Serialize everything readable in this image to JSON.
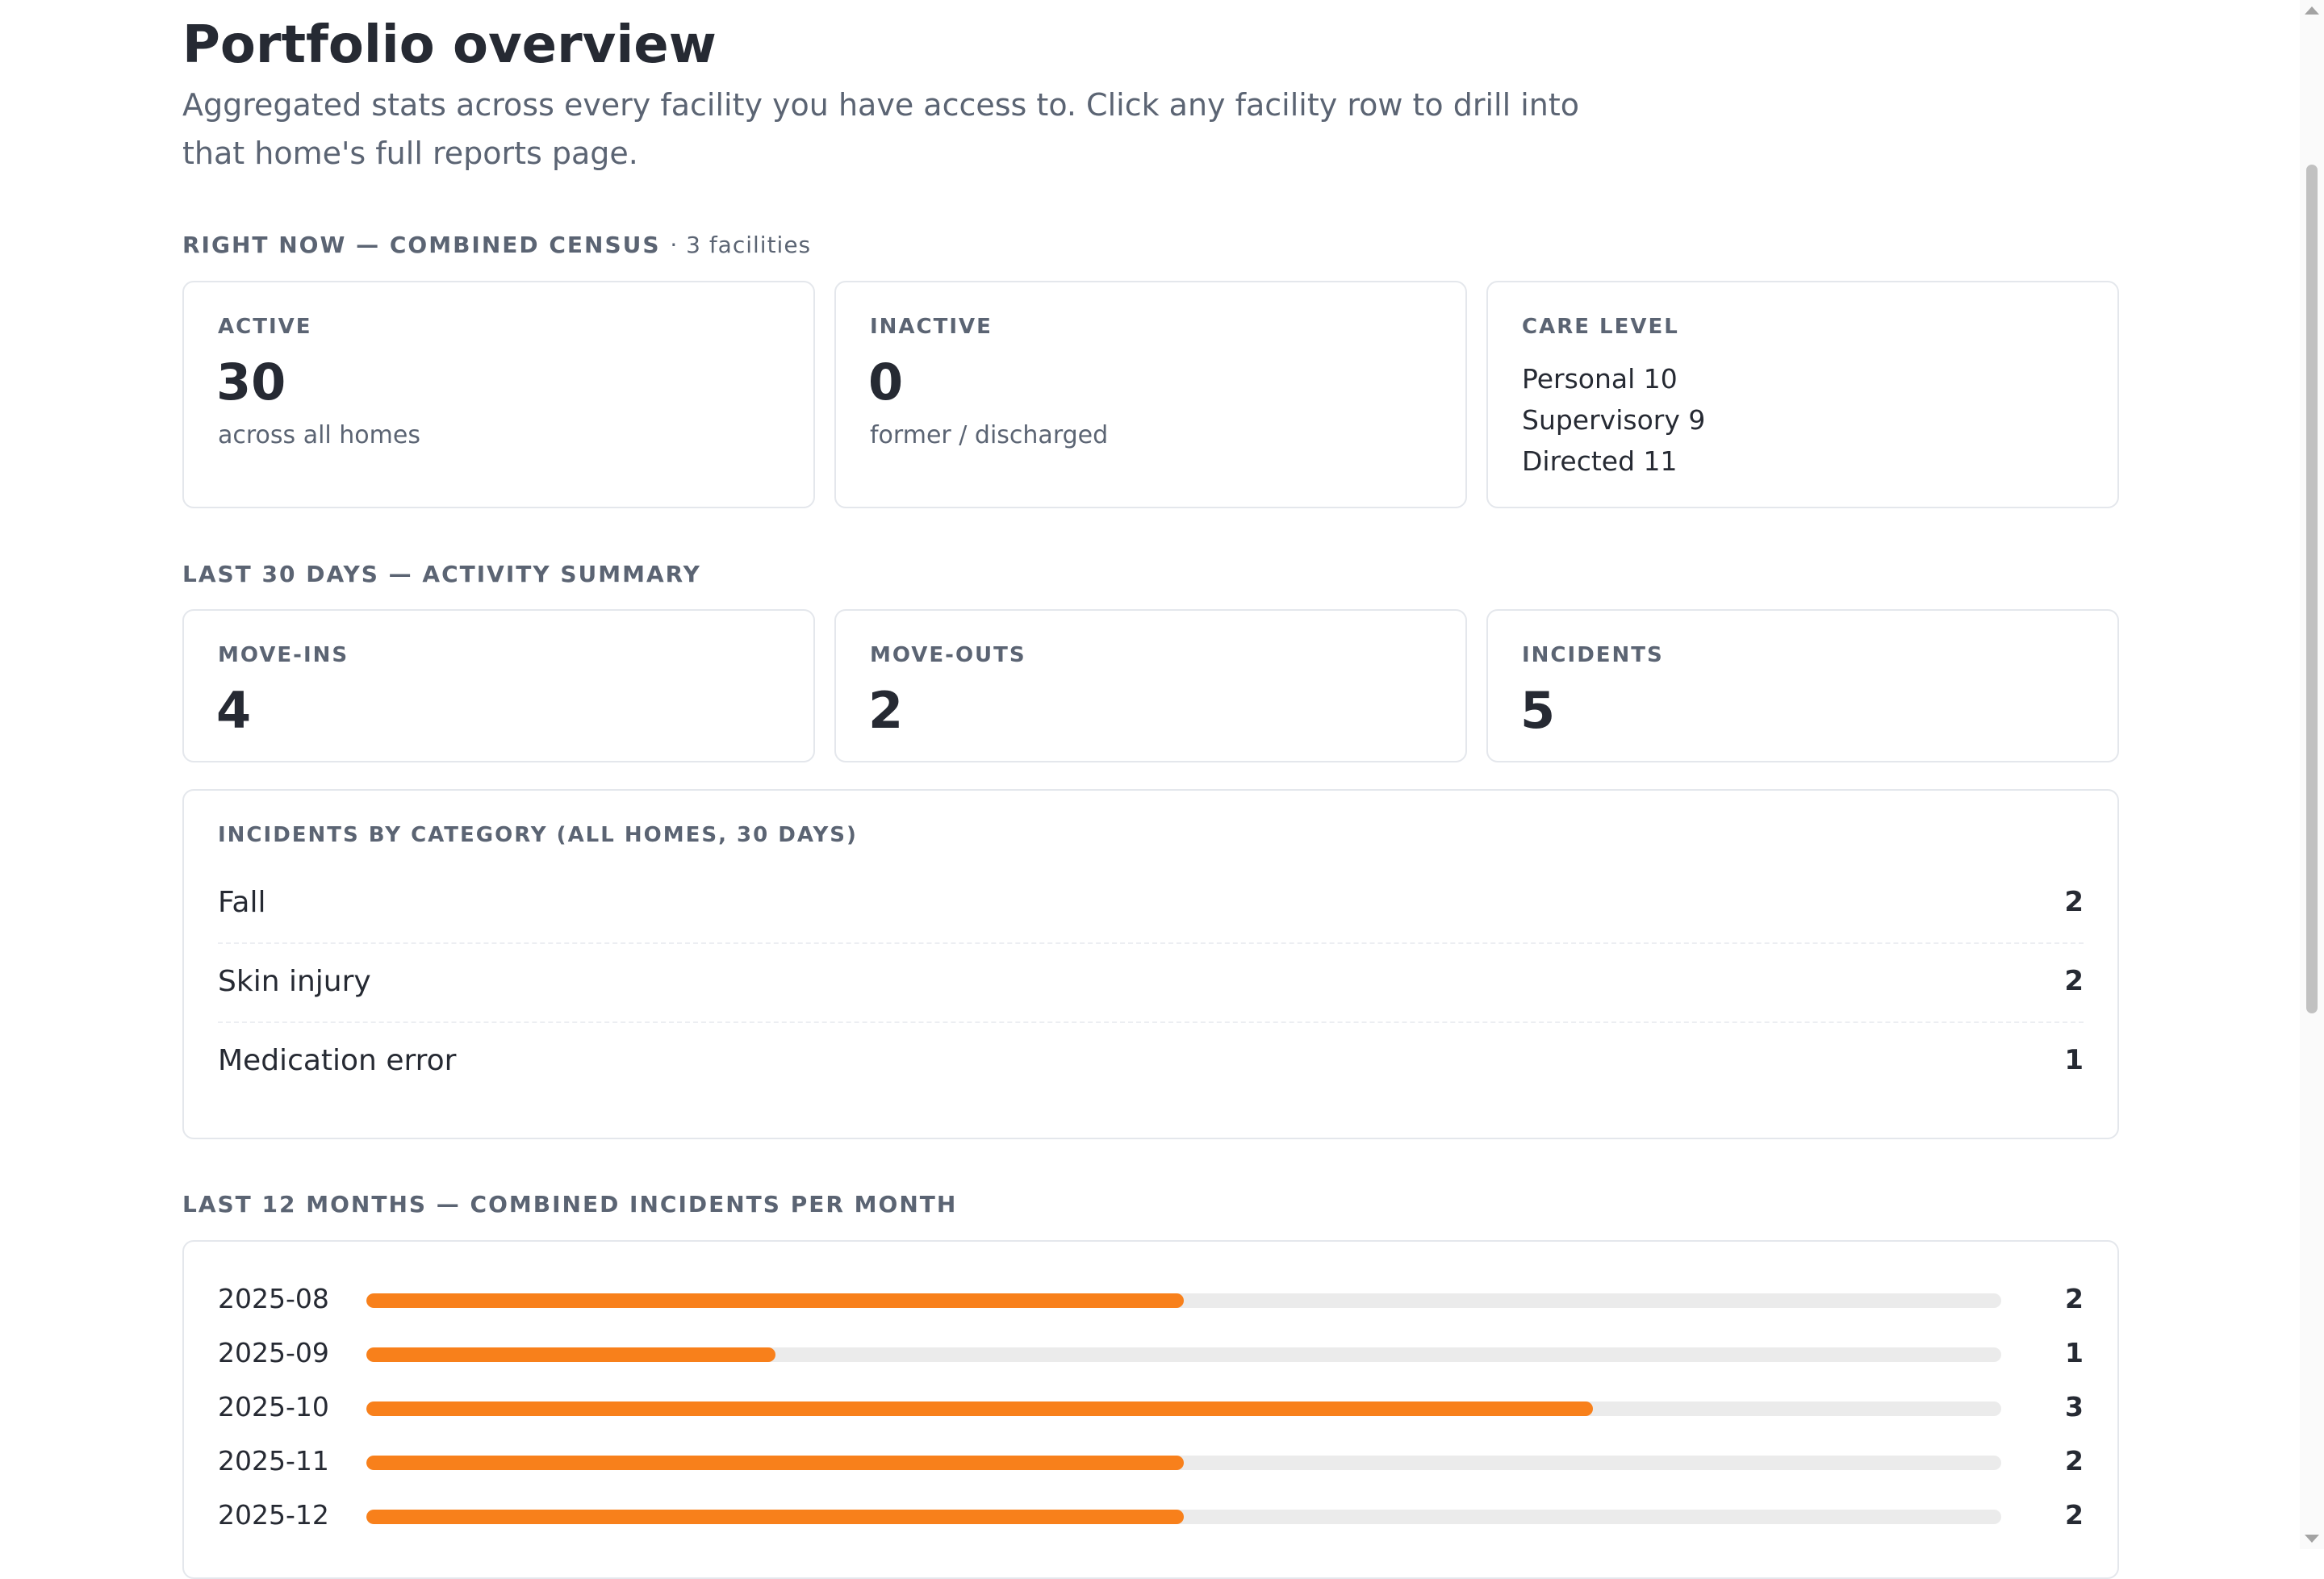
{
  "header": {
    "title": "Portfolio overview",
    "subtitle": "Aggregated stats across every facility you have access to. Click any facility row to drill into that home's full reports page."
  },
  "census": {
    "label": "RIGHT NOW — COMBINED CENSUS",
    "facilities_note": "· 3 facilities",
    "active": {
      "label": "ACTIVE",
      "value": "30",
      "note": "across all homes"
    },
    "inactive": {
      "label": "INACTIVE",
      "value": "0",
      "note": "former / discharged"
    },
    "care_level": {
      "label": "CARE LEVEL",
      "items": [
        "Personal 10",
        "Supervisory 9",
        "Directed 11"
      ]
    }
  },
  "activity": {
    "label": "LAST 30 DAYS — ACTIVITY SUMMARY",
    "move_ins": {
      "label": "MOVE-INS",
      "value": "4"
    },
    "move_outs": {
      "label": "MOVE-OUTS",
      "value": "2"
    },
    "incidents": {
      "label": "INCIDENTS",
      "value": "5"
    }
  },
  "categories": {
    "label": "INCIDENTS BY CATEGORY (ALL HOMES, 30 DAYS)",
    "rows": [
      {
        "name": "Fall",
        "count": "2"
      },
      {
        "name": "Skin injury",
        "count": "2"
      },
      {
        "name": "Medication error",
        "count": "1"
      }
    ]
  },
  "monthly": {
    "label": "LAST 12 MONTHS — COMBINED INCIDENTS PER MONTH",
    "scale_max": 4,
    "rows": [
      {
        "month": "2025-08",
        "count": 2
      },
      {
        "month": "2025-09",
        "count": 1
      },
      {
        "month": "2025-10",
        "count": 3
      },
      {
        "month": "2025-11",
        "count": 2
      },
      {
        "month": "2025-12",
        "count": 2
      }
    ]
  },
  "colors": {
    "accent": "#f8801b",
    "track": "#ebebeb",
    "text": "#262a33",
    "muted": "#5b6473",
    "border": "#e4e7ec"
  }
}
